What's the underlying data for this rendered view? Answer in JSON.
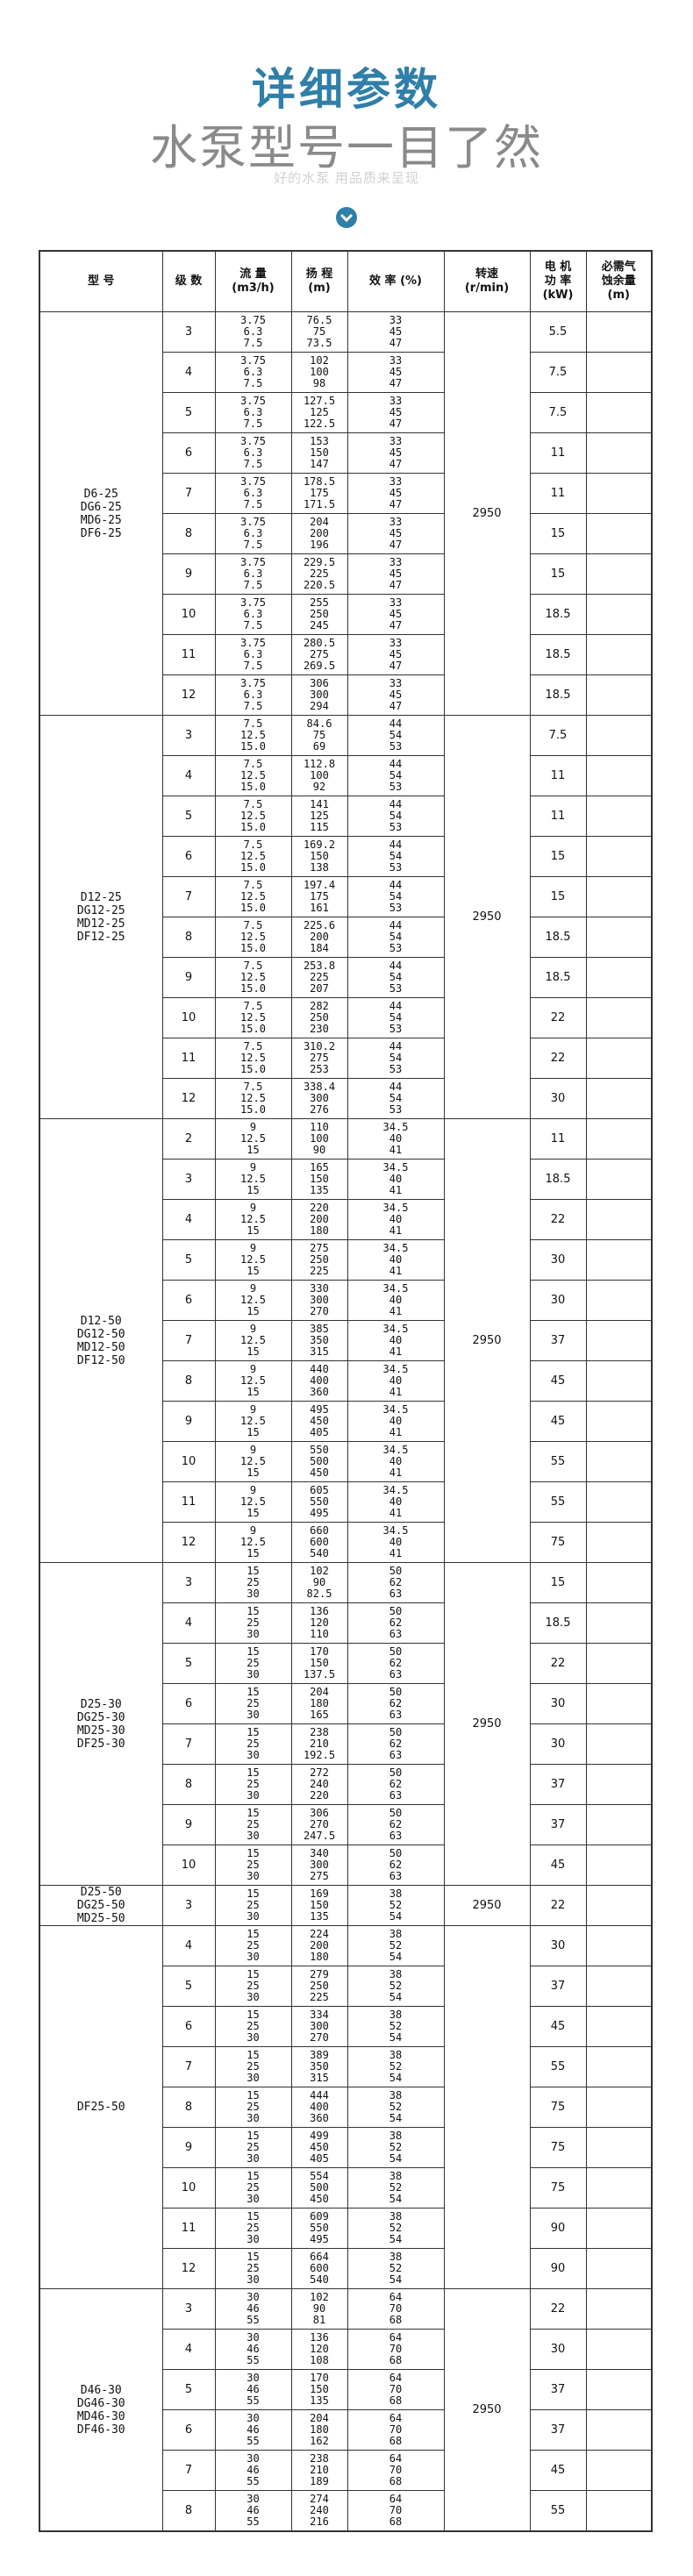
{
  "header": {
    "title": "详细参数",
    "slogan": "水泵型号一目了然",
    "subtitle": "好的水泵 用品质来呈现"
  },
  "table": {
    "columns": [
      [
        "型 号"
      ],
      [
        "级 数"
      ],
      [
        "流 量",
        "(m3/h)"
      ],
      [
        "扬 程",
        "(m)"
      ],
      [
        "效 率 (%)"
      ],
      [
        "转速",
        "(r/min)"
      ],
      [
        "电 机",
        "功 率",
        "(kW)"
      ],
      [
        "必需气",
        "蚀余量",
        "(m)"
      ]
    ],
    "groups": [
      {
        "models": [
          "D6-25",
          "DG6-25",
          "MD6-25",
          "DF6-25"
        ],
        "speed": "2950",
        "flow": [
          "3.75",
          "6.3",
          "7.5"
        ],
        "eff": [
          "33",
          "45",
          "47"
        ],
        "rows": [
          {
            "stage": "3",
            "head": [
              "76.5",
              "75",
              "73.5"
            ],
            "power": "5.5"
          },
          {
            "stage": "4",
            "head": [
              "102",
              "100",
              "98"
            ],
            "power": "7.5"
          },
          {
            "stage": "5",
            "head": [
              "127.5",
              "125",
              "122.5"
            ],
            "power": "7.5"
          },
          {
            "stage": "6",
            "head": [
              "153",
              "150",
              "147"
            ],
            "power": "11"
          },
          {
            "stage": "7",
            "head": [
              "178.5",
              "175",
              "171.5"
            ],
            "power": "11"
          },
          {
            "stage": "8",
            "head": [
              "204",
              "200",
              "196"
            ],
            "power": "15"
          },
          {
            "stage": "9",
            "head": [
              "229.5",
              "225",
              "220.5"
            ],
            "power": "15"
          },
          {
            "stage": "10",
            "head": [
              "255",
              "250",
              "245"
            ],
            "power": "18.5"
          },
          {
            "stage": "11",
            "head": [
              "280.5",
              "275",
              "269.5"
            ],
            "power": "18.5"
          },
          {
            "stage": "12",
            "head": [
              "306",
              "300",
              "294"
            ],
            "power": "18.5"
          }
        ]
      },
      {
        "models": [
          "D12-25",
          "DG12-25",
          "MD12-25",
          "DF12-25"
        ],
        "speed": "2950",
        "flow": [
          "7.5",
          "12.5",
          "15.0"
        ],
        "eff": [
          "44",
          "54",
          "53"
        ],
        "rows": [
          {
            "stage": "3",
            "head": [
              "84.6",
              "75",
              "69"
            ],
            "power": "7.5"
          },
          {
            "stage": "4",
            "head": [
              "112.8",
              "100",
              "92"
            ],
            "power": "11"
          },
          {
            "stage": "5",
            "head": [
              "141",
              "125",
              "115"
            ],
            "power": "11"
          },
          {
            "stage": "6",
            "head": [
              "169.2",
              "150",
              "138"
            ],
            "power": "15"
          },
          {
            "stage": "7",
            "head": [
              "197.4",
              "175",
              "161"
            ],
            "power": "15"
          },
          {
            "stage": "8",
            "head": [
              "225.6",
              "200",
              "184"
            ],
            "power": "18.5"
          },
          {
            "stage": "9",
            "head": [
              "253.8",
              "225",
              "207"
            ],
            "power": "18.5"
          },
          {
            "stage": "10",
            "head": [
              "282",
              "250",
              "230"
            ],
            "power": "22"
          },
          {
            "stage": "11",
            "head": [
              "310.2",
              "275",
              "253"
            ],
            "power": "22"
          },
          {
            "stage": "12",
            "head": [
              "338.4",
              "300",
              "276"
            ],
            "power": "30"
          }
        ]
      },
      {
        "models": [
          "D12-50",
          "DG12-50",
          "MD12-50",
          "DF12-50"
        ],
        "speed": "2950",
        "flow": [
          "9",
          "12.5",
          "15"
        ],
        "eff": [
          "34.5",
          "40",
          "41"
        ],
        "rows": [
          {
            "stage": "2",
            "head": [
              "110",
              "100",
              "90"
            ],
            "power": "11"
          },
          {
            "stage": "3",
            "head": [
              "165",
              "150",
              "135"
            ],
            "power": "18.5"
          },
          {
            "stage": "4",
            "head": [
              "220",
              "200",
              "180"
            ],
            "power": "22"
          },
          {
            "stage": "5",
            "head": [
              "275",
              "250",
              "225"
            ],
            "power": "30"
          },
          {
            "stage": "6",
            "head": [
              "330",
              "300",
              "270"
            ],
            "power": "30"
          },
          {
            "stage": "7",
            "head": [
              "385",
              "350",
              "315"
            ],
            "power": "37"
          },
          {
            "stage": "8",
            "head": [
              "440",
              "400",
              "360"
            ],
            "power": "45"
          },
          {
            "stage": "9",
            "head": [
              "495",
              "450",
              "405"
            ],
            "power": "45"
          },
          {
            "stage": "10",
            "head": [
              "550",
              "500",
              "450"
            ],
            "power": "55"
          },
          {
            "stage": "11",
            "head": [
              "605",
              "550",
              "495"
            ],
            "power": "55"
          },
          {
            "stage": "12",
            "head": [
              "660",
              "600",
              "540"
            ],
            "power": "75"
          }
        ]
      },
      {
        "models": [
          "D25-30",
          "DG25-30",
          "MD25-30",
          "DF25-30"
        ],
        "speed": "2950",
        "flow": [
          "15",
          "25",
          "30"
        ],
        "eff": [
          "50",
          "62",
          "63"
        ],
        "rows": [
          {
            "stage": "3",
            "head": [
              "102",
              "90",
              "82.5"
            ],
            "power": "15"
          },
          {
            "stage": "4",
            "head": [
              "136",
              "120",
              "110"
            ],
            "power": "18.5"
          },
          {
            "stage": "5",
            "head": [
              "170",
              "150",
              "137.5"
            ],
            "power": "22"
          },
          {
            "stage": "6",
            "head": [
              "204",
              "180",
              "165"
            ],
            "power": "30"
          },
          {
            "stage": "7",
            "head": [
              "238",
              "210",
              "192.5"
            ],
            "power": "30"
          },
          {
            "stage": "8",
            "head": [
              "272",
              "240",
              "220"
            ],
            "power": "37"
          },
          {
            "stage": "9",
            "head": [
              "306",
              "270",
              "247.5"
            ],
            "power": "37"
          },
          {
            "stage": "10",
            "head": [
              "340",
              "300",
              "275"
            ],
            "power": "45"
          }
        ]
      },
      {
        "models": [
          "D25-50",
          "DG25-50",
          "MD25-50"
        ],
        "speed": "2950",
        "flow": [
          "15",
          "25",
          "30"
        ],
        "eff": [
          "38",
          "52",
          "54"
        ],
        "rows": [
          {
            "stage": "3",
            "head": [
              "169",
              "150",
              "135"
            ],
            "power": "22"
          }
        ]
      },
      {
        "models": [
          "DF25-50"
        ],
        "flow": [
          "15",
          "25",
          "30"
        ],
        "eff": [
          "38",
          "52",
          "54"
        ],
        "rows": [
          {
            "stage": "4",
            "head": [
              "224",
              "200",
              "180"
            ],
            "power": "30"
          },
          {
            "stage": "5",
            "head": [
              "279",
              "250",
              "225"
            ],
            "power": "37"
          },
          {
            "stage": "6",
            "head": [
              "334",
              "300",
              "270"
            ],
            "power": "45"
          },
          {
            "stage": "7",
            "head": [
              "389",
              "350",
              "315"
            ],
            "power": "55"
          },
          {
            "stage": "8",
            "head": [
              "444",
              "400",
              "360"
            ],
            "power": "75"
          },
          {
            "stage": "9",
            "head": [
              "499",
              "450",
              "405"
            ],
            "power": "75"
          },
          {
            "stage": "10",
            "head": [
              "554",
              "500",
              "450"
            ],
            "power": "75"
          },
          {
            "stage": "11",
            "head": [
              "609",
              "550",
              "495"
            ],
            "power": "90"
          },
          {
            "stage": "12",
            "head": [
              "664",
              "600",
              "540"
            ],
            "power": "90"
          }
        ]
      },
      {
        "models": [
          "D46-30",
          "DG46-30",
          "MD46-30",
          "DF46-30"
        ],
        "speed": "2950",
        "flow": [
          "30",
          "46",
          "55"
        ],
        "eff": [
          "64",
          "70",
          "68"
        ],
        "rows": [
          {
            "stage": "3",
            "head": [
              "102",
              "90",
              "81"
            ],
            "power": "22"
          },
          {
            "stage": "4",
            "head": [
              "136",
              "120",
              "108"
            ],
            "power": "30"
          },
          {
            "stage": "5",
            "head": [
              "170",
              "150",
              "135"
            ],
            "power": "37"
          },
          {
            "stage": "6",
            "head": [
              "204",
              "180",
              "162"
            ],
            "power": "37"
          },
          {
            "stage": "7",
            "head": [
              "238",
              "210",
              "189"
            ],
            "power": "45"
          },
          {
            "stage": "8",
            "head": [
              "274",
              "240",
              "216"
            ],
            "power": "55"
          }
        ]
      }
    ]
  }
}
